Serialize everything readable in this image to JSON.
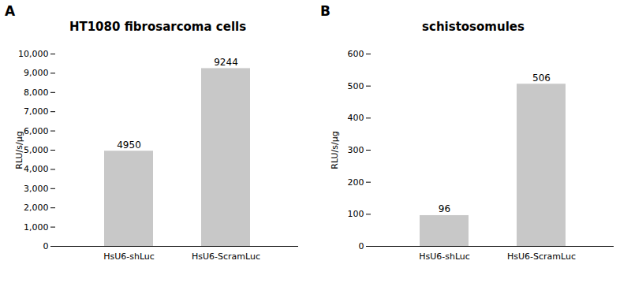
{
  "chart_data": [
    {
      "type": "bar",
      "title": "HT1080 fibrosarcoma cells",
      "annotations": [
        "A"
      ],
      "categories": [
        "HsU6-shLuc",
        "HsU6-ScramLuc"
      ],
      "values": [
        4950,
        9244
      ],
      "color": "#c8c8c8",
      "ylabel": "RLU/s/μg",
      "ylim": [
        0,
        10000
      ],
      "yticks": [
        0,
        1000,
        2000,
        3000,
        4000,
        5000,
        6000,
        7000,
        8000,
        9000,
        10000
      ],
      "grid": false,
      "data_labels": true
    },
    {
      "type": "bar",
      "title": "schistosomules",
      "annotations": [
        "B"
      ],
      "categories": [
        "HsU6-shLuc",
        "HsU6-ScramLuc"
      ],
      "values": [
        96,
        506
      ],
      "color": "#c8c8c8",
      "ylabel": "RLU/s/μg",
      "ylim": [
        0,
        600
      ],
      "yticks": [
        0,
        100,
        200,
        300,
        400,
        500,
        600
      ],
      "grid": false,
      "data_labels": true
    }
  ]
}
